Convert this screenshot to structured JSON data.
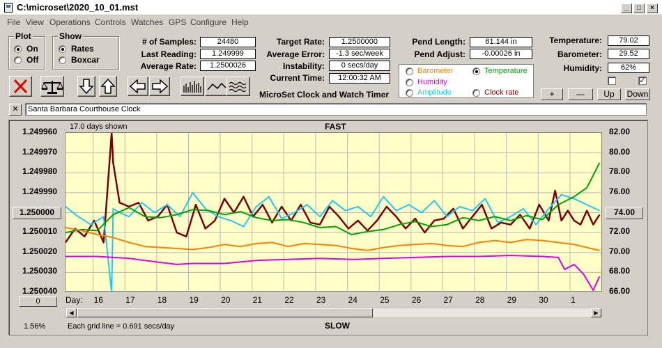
{
  "window": {
    "title": "C:\\microset\\2020_10_01.mst"
  },
  "menu": [
    "File",
    "View",
    "Operations",
    "Controls",
    "Watches",
    "GPS",
    "Configure",
    "Help"
  ],
  "plot_group": {
    "label": "Plot",
    "on": "On",
    "off": "Off",
    "selected": "On"
  },
  "show_group": {
    "label": "Show",
    "rates": "Rates",
    "boxcar": "Boxcar",
    "selected": "Rates"
  },
  "stats": {
    "samples_label": "# of Samples:",
    "samples": "24480",
    "last_label": "Last Reading:",
    "last": "1.249999",
    "avg_rate_label": "Average Rate:",
    "avg_rate": "1.2500026",
    "target_label": "Target Rate:",
    "target": "1.2500000",
    "avg_err_label": "Average Error:",
    "avg_err": "-1.3 sec/week",
    "instab_label": "Instability:",
    "instab": "0 secs/day",
    "time_label": "Current Time:",
    "time": "12:00:32 AM",
    "app_name": "MicroSet Clock and Watch Timer",
    "pend_len_label": "Pend Length:",
    "pend_len": "61.144 in",
    "pend_adj_label": "Pend Adjust:",
    "pend_adj": "-0.00026 in",
    "temp_label": "Temperature:",
    "temp": "79.02",
    "baro_label": "Barometer:",
    "baro": "29.52",
    "hum_label": "Humidity:",
    "hum": "62%"
  },
  "sensor_options": {
    "barometer": "Barometer",
    "temperature": "Temperature",
    "humidity": "Humidity",
    "amplitude": "Amplitude",
    "clock_rate": "Clock rate",
    "selected": "Temperature"
  },
  "sensor_buttons": {
    "plus": "+",
    "minus": "—",
    "up": "Up",
    "down": "Down"
  },
  "checkboxes": {
    "left_checked": false,
    "right_checked": true,
    "check_mark": "✓"
  },
  "clock_name": {
    "close": "✕",
    "value": "Santa Barbara Courthouse Clock"
  },
  "plot": {
    "days_shown": "17.0 days shown",
    "fast": "FAST",
    "slow": "SLOW",
    "left_center_button": "1.250000",
    "right_center_button": "74.00",
    "zero_button": "0",
    "percent": "1.56%",
    "grid_note": "Each grid line = 0.691 secs/day",
    "day_label": "Day:"
  },
  "colors": {
    "rate": "#7a0000",
    "temperature": "#00a000",
    "barometer": "#ff8000",
    "humidity": "#e000e0",
    "amplitude": "#20c8f0",
    "clock_rate": "#800000"
  },
  "chart_data": {
    "type": "line",
    "x_days": [
      "16",
      "17",
      "18",
      "19",
      "20",
      "21",
      "22",
      "23",
      "24",
      "25",
      "26",
      "27",
      "28",
      "29",
      "30",
      "1"
    ],
    "left_axis_ticks": [
      "1.249960",
      "1.249970",
      "1.249980",
      "1.249990",
      "1.250010",
      "1.250020",
      "1.250030",
      "1.250040"
    ],
    "right_axis_ticks": [
      "82.00",
      "80.00",
      "78.00",
      "76.00",
      "72.00",
      "70.00",
      "68.00",
      "66.00"
    ],
    "left_ylim": [
      1.24996,
      1.25004
    ],
    "right_ylim": [
      66,
      82
    ],
    "grid": true,
    "series": [
      {
        "key": "rate",
        "axis": "left",
        "color": "#7a0000",
        "x": [
          15.0,
          15.3,
          15.6,
          15.9,
          16.2,
          16.45,
          16.5,
          16.7,
          17.0,
          17.3,
          17.6,
          17.9,
          18.2,
          18.5,
          18.8,
          19.1,
          19.4,
          19.7,
          20.0,
          20.3,
          20.6,
          20.9,
          21.2,
          21.5,
          21.8,
          22.1,
          22.4,
          22.7,
          23.0,
          23.3,
          23.6,
          23.9,
          24.2,
          24.5,
          24.8,
          25.1,
          25.4,
          25.7,
          26.0,
          26.3,
          26.6,
          26.9,
          27.2,
          27.5,
          27.8,
          28.1,
          28.4,
          28.7,
          29.0,
          29.3,
          29.6,
          29.9,
          30.2,
          30.4,
          30.6,
          30.8,
          31.0,
          31.2,
          31.4,
          31.6,
          31.8
        ],
        "y": [
          1.250015,
          1.250008,
          1.250012,
          1.250004,
          1.250015,
          1.24996,
          1.249975,
          1.249995,
          1.249997,
          1.249995,
          1.250004,
          1.250002,
          1.249996,
          1.25001,
          1.250012,
          1.249996,
          1.250008,
          1.250004,
          1.249993,
          1.25,
          1.249992,
          1.250002,
          1.249996,
          1.250005,
          1.249997,
          1.250004,
          1.249996,
          1.250005,
          1.250006,
          1.249997,
          1.250002,
          1.250008,
          1.250004,
          1.250009,
          1.250004,
          1.249997,
          1.250002,
          1.250008,
          1.250003,
          1.25001,
          1.250004,
          1.250003,
          1.249998,
          1.250008,
          1.250002,
          1.249996,
          1.250008,
          1.250005,
          1.250006,
          1.250001,
          1.250008,
          1.249996,
          1.250004,
          1.249989,
          1.250004,
          1.249999,
          1.250004,
          1.250006,
          1.249999,
          1.250006,
          1.250001
        ]
      },
      {
        "key": "amplitude",
        "axis": "left",
        "color": "#20c8f0",
        "x": [
          15.0,
          15.4,
          15.8,
          16.2,
          16.45,
          16.5,
          16.7,
          17.0,
          17.4,
          17.8,
          18.2,
          18.6,
          19.0,
          19.4,
          19.8,
          20.2,
          20.6,
          21.0,
          21.4,
          21.8,
          22.2,
          22.6,
          23.0,
          23.4,
          23.8,
          24.2,
          24.6,
          25.0,
          25.4,
          25.8,
          26.2,
          26.6,
          27.0,
          27.4,
          27.8,
          28.2,
          28.6,
          29.0,
          29.4,
          29.8,
          30.2,
          30.6,
          31.0,
          31.4,
          31.8
        ],
        "y": [
          1.249997,
          1.250002,
          1.250006,
          1.250002,
          1.25004,
          1.249998,
          1.25,
          1.250002,
          1.249995,
          1.25,
          1.249996,
          1.250002,
          1.24999,
          1.249998,
          1.250002,
          1.250004,
          1.250007,
          1.249997,
          1.249992,
          1.250003,
          1.25,
          1.249996,
          1.250002,
          1.249994,
          1.249999,
          1.249997,
          1.250002,
          1.249992,
          1.249999,
          1.249996,
          1.25,
          1.249994,
          1.250002,
          1.249997,
          1.249999,
          1.249993,
          1.250005,
          1.250002,
          1.249998,
          1.250006,
          1.249998,
          1.249991,
          1.249993,
          1.249996,
          1.249999
        ]
      },
      {
        "key": "temperature",
        "axis": "right",
        "color": "#00a000",
        "x": [
          15.0,
          15.5,
          16.0,
          16.5,
          17.0,
          17.5,
          18.0,
          18.5,
          19.0,
          19.5,
          20.0,
          20.5,
          21.0,
          21.5,
          22.0,
          22.5,
          23.0,
          23.5,
          24.0,
          24.5,
          25.0,
          25.5,
          26.0,
          26.5,
          27.0,
          27.5,
          28.0,
          28.5,
          29.0,
          29.5,
          30.0,
          30.5,
          31.0,
          31.4,
          31.8
        ],
        "y": [
          72.0,
          72.3,
          72.2,
          73.8,
          74.5,
          73.6,
          73.5,
          73.8,
          74.3,
          74.2,
          73.8,
          74.1,
          73.5,
          73.2,
          73.3,
          73.0,
          72.5,
          72.6,
          71.8,
          72.1,
          72.3,
          72.8,
          73.1,
          72.6,
          72.8,
          73.5,
          73.2,
          73.6,
          73.2,
          73.7,
          73.3,
          74.8,
          75.6,
          76.5,
          79.0
        ]
      },
      {
        "key": "barometer",
        "axis": "right",
        "color": "#ff8000",
        "x": [
          15.0,
          15.5,
          16.0,
          16.5,
          17.0,
          17.5,
          18.0,
          18.5,
          19.0,
          19.5,
          20.0,
          20.5,
          21.0,
          21.5,
          22.0,
          22.5,
          23.0,
          23.5,
          24.0,
          24.5,
          25.0,
          25.5,
          26.0,
          26.5,
          27.0,
          27.5,
          28.0,
          28.5,
          29.0,
          29.5,
          30.0,
          30.5,
          31.0,
          31.4,
          31.8
        ],
        "y": [
          72.5,
          72.2,
          71.8,
          71.5,
          71.0,
          70.6,
          70.5,
          70.4,
          70.3,
          70.5,
          70.8,
          70.6,
          70.9,
          71.0,
          70.6,
          70.9,
          70.8,
          70.7,
          70.4,
          70.2,
          70.5,
          70.7,
          70.8,
          70.9,
          70.7,
          70.6,
          71.0,
          71.2,
          71.0,
          71.3,
          71.2,
          71.0,
          70.8,
          70.5,
          70.2
        ]
      },
      {
        "key": "humidity",
        "axis": "right",
        "color": "#e000e0",
        "x": [
          15.0,
          16.0,
          17.0,
          17.5,
          18.0,
          18.5,
          19.0,
          20.0,
          21.0,
          22.0,
          23.0,
          24.0,
          25.0,
          26.0,
          27.0,
          28.0,
          29.0,
          30.0,
          30.5,
          30.7,
          31.0,
          31.3,
          31.6,
          31.8
        ],
        "y": [
          69.6,
          69.6,
          69.4,
          69.2,
          69.0,
          68.8,
          68.9,
          68.9,
          69.2,
          69.3,
          69.4,
          69.3,
          69.4,
          69.5,
          69.6,
          69.6,
          69.7,
          69.6,
          69.5,
          68.3,
          68.8,
          67.8,
          66.2,
          67.6
        ]
      }
    ]
  }
}
